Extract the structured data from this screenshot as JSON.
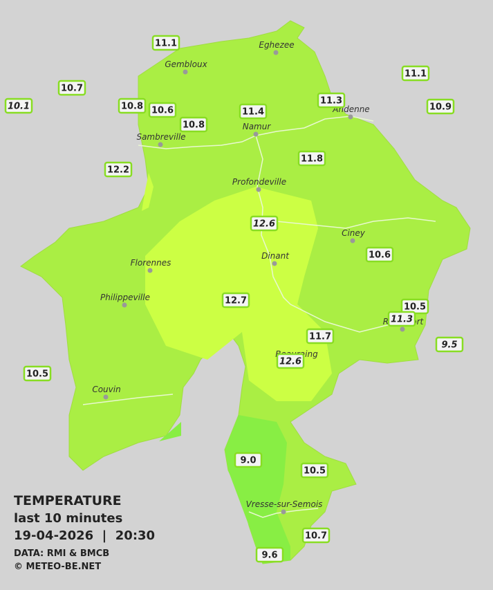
{
  "legend": {
    "title": "TEMPERATURE",
    "subtitle": "last 10 minutes",
    "datetime": "19-04-2026  |  20:30",
    "source": "DATA: RMI & BMCB",
    "copyright": "© METEO-BE.NET"
  },
  "cities": [
    "Eghezee",
    "Gembloux",
    "Andenne",
    "Namur",
    "Sambreville",
    "Profondeville",
    "Ciney",
    "Dinant",
    "Florennes",
    "Philippeville",
    "Rochefort",
    "Beauraing",
    "Couvin",
    "Vresse-sur-Semois"
  ],
  "stations": [
    "11.1",
    "10.7",
    "10.1",
    "10.8",
    "10.6",
    "10.8",
    "11.4",
    "11.3",
    "11.1",
    "10.9",
    "12.2",
    "11.8",
    "12.6",
    "10.6",
    "12.7",
    "10.5",
    "11.3",
    "11.7",
    "9.5",
    "12.6",
    "10.5",
    "9.0",
    "10.5",
    "10.7",
    "9.6"
  ]
}
